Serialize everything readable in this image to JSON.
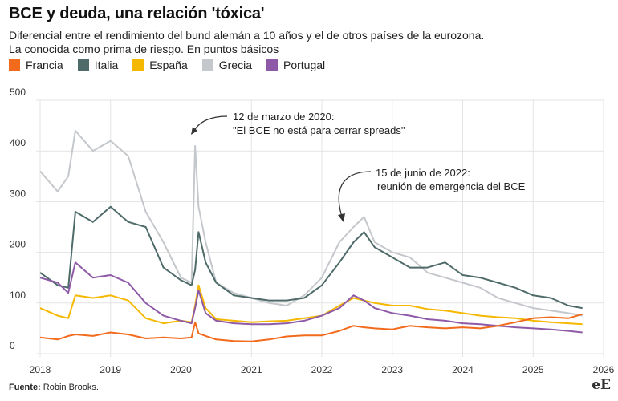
{
  "title": "BCE y deuda, una relación 'tóxica'",
  "subtitle_line1": "Diferencial entre el rendimiento del bund alemán a 10 años y el de otros países de la eurozona.",
  "subtitle_line2": "La conocida como prima de riesgo. En puntos básicos",
  "source_label": "Fuente:",
  "source_value": "Robin Brooks.",
  "logo": "eE",
  "colors": {
    "Francia": "#f26b1d",
    "Italia": "#4e6b69",
    "España": "#f5b800",
    "Grecia": "#c4c7cb",
    "Portugal": "#8e5aa8"
  },
  "chart_data": {
    "type": "line",
    "title": "BCE y deuda, una relación 'tóxica'",
    "xlabel": "",
    "ylabel": "",
    "xlim": [
      2018,
      2026
    ],
    "ylim": [
      0,
      500
    ],
    "x_ticks": [
      "2018",
      "2019",
      "2020",
      "2021",
      "2022",
      "2023",
      "2024",
      "2025",
      "2026"
    ],
    "y_ticks": [
      "0",
      "100",
      "200",
      "300",
      "400",
      "500"
    ],
    "grid": true,
    "legend_position": "top-left",
    "x": [
      2018.0,
      2018.25,
      2018.4,
      2018.5,
      2018.75,
      2019.0,
      2019.25,
      2019.5,
      2019.75,
      2020.0,
      2020.15,
      2020.2,
      2020.25,
      2020.35,
      2020.5,
      2020.75,
      2021.0,
      2021.25,
      2021.5,
      2021.75,
      2022.0,
      2022.25,
      2022.45,
      2022.6,
      2022.75,
      2023.0,
      2023.25,
      2023.5,
      2023.75,
      2024.0,
      2024.25,
      2024.5,
      2024.75,
      2025.0,
      2025.25,
      2025.5,
      2025.7
    ],
    "series": [
      {
        "name": "Francia",
        "values": [
          32,
          28,
          35,
          38,
          35,
          42,
          38,
          30,
          32,
          30,
          32,
          62,
          40,
          35,
          28,
          25,
          24,
          28,
          34,
          36,
          36,
          45,
          55,
          52,
          50,
          48,
          55,
          52,
          50,
          52,
          50,
          55,
          62,
          70,
          72,
          70,
          78
        ]
      },
      {
        "name": "Italia",
        "values": [
          160,
          135,
          130,
          280,
          260,
          290,
          260,
          250,
          170,
          145,
          135,
          165,
          240,
          180,
          140,
          115,
          110,
          105,
          105,
          110,
          135,
          180,
          220,
          240,
          210,
          190,
          170,
          170,
          180,
          155,
          150,
          140,
          130,
          115,
          110,
          95,
          90
        ]
      },
      {
        "name": "España",
        "values": [
          90,
          75,
          70,
          115,
          110,
          115,
          105,
          70,
          60,
          65,
          62,
          95,
          135,
          90,
          68,
          65,
          62,
          64,
          65,
          70,
          75,
          95,
          110,
          105,
          100,
          95,
          95,
          88,
          85,
          80,
          75,
          72,
          70,
          65,
          62,
          60,
          58
        ]
      },
      {
        "name": "Grecia",
        "values": [
          360,
          320,
          350,
          440,
          400,
          420,
          390,
          280,
          220,
          150,
          140,
          410,
          290,
          220,
          140,
          120,
          110,
          100,
          95,
          115,
          150,
          220,
          250,
          270,
          220,
          200,
          190,
          160,
          150,
          140,
          130,
          110,
          100,
          90,
          85,
          80,
          75
        ]
      },
      {
        "name": "Portugal",
        "values": [
          150,
          140,
          120,
          180,
          150,
          155,
          140,
          100,
          75,
          65,
          60,
          90,
          125,
          80,
          65,
          60,
          58,
          58,
          60,
          65,
          75,
          90,
          115,
          105,
          90,
          80,
          75,
          68,
          65,
          60,
          58,
          55,
          52,
          50,
          48,
          45,
          42
        ]
      }
    ],
    "annotations": [
      {
        "line1": "12 de marzo de 2020:",
        "line2": "\"El BCE no está para cerrar spreads\"",
        "x": 2020.2,
        "y": 415
      },
      {
        "line1": "15 de junio de 2022:",
        "line2": "reunión de emergencia del BCE",
        "x": 2022.45,
        "y": 255
      }
    ]
  }
}
